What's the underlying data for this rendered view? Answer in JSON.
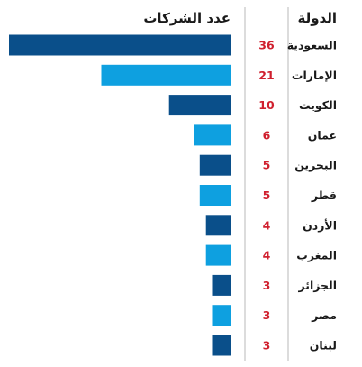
{
  "chart_data": {
    "type": "bar",
    "orientation": "horizontal",
    "direction": "rtl",
    "column_headers": {
      "country": "الدولة",
      "bars": "عدد الشركات"
    },
    "categories": [
      "السعودية",
      "الإمارات",
      "الكويت",
      "عمان",
      "البحرين",
      "قطر",
      "الأردن",
      "المغرب",
      "الجزائر",
      "مصر",
      "لبنان"
    ],
    "values": [
      36,
      21,
      10,
      6,
      5,
      5,
      4,
      4,
      3,
      3,
      3
    ],
    "xlim": [
      0,
      36
    ],
    "grid": false,
    "legend": "none",
    "colors": {
      "dark_blue": "#0a4f8a",
      "light_blue": "#0ea0e0",
      "value_text": "#d0202e",
      "header_text": "#1a1a1a",
      "divider": "#b8b8b8"
    },
    "bar_color_pattern": [
      "dark_blue",
      "light_blue"
    ]
  }
}
